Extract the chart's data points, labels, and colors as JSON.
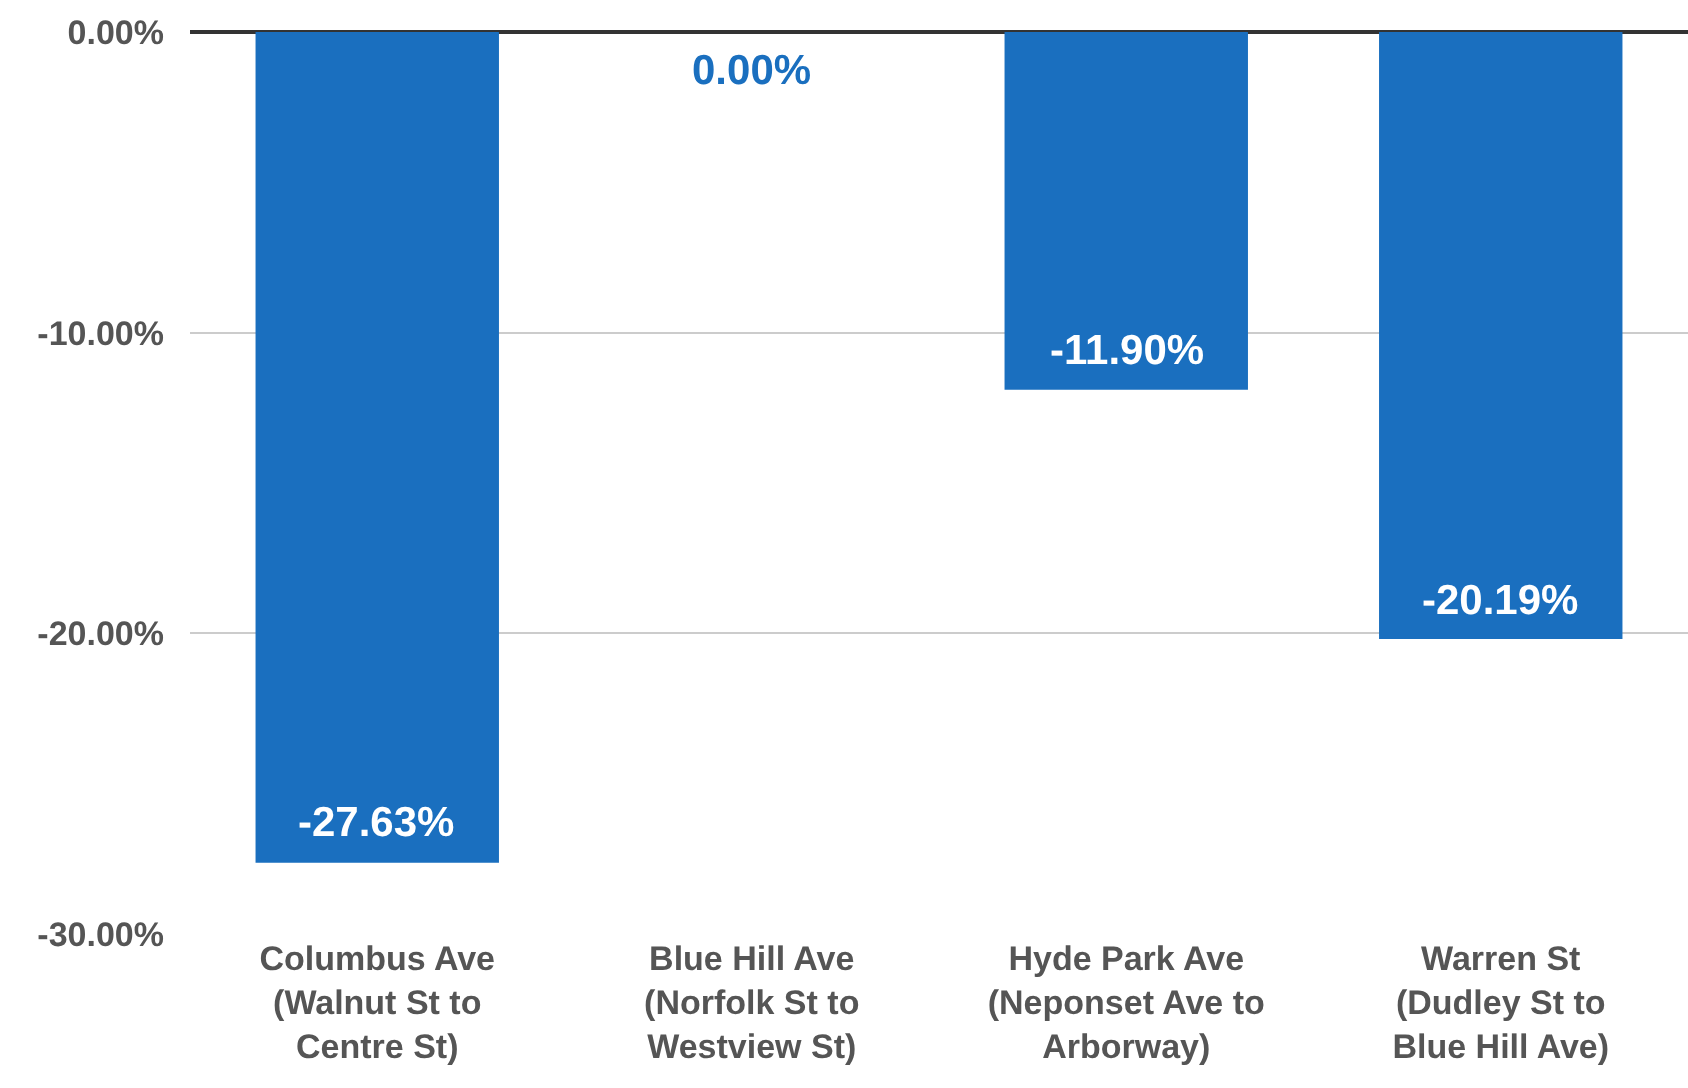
{
  "chart_data": {
    "type": "bar",
    "categories": [
      "Columbus Ave\n(Walnut St to\nCentre St)",
      "Blue Hill Ave\n(Norfolk St to\nWestview St)",
      "Hyde Park Ave\n(Neponset Ave to\nArborway)",
      "Warren St\n(Dudley St to\nBlue Hill Ave)"
    ],
    "values": [
      -27.63,
      0,
      -11.9,
      -20.19
    ],
    "value_labels": [
      "-27.63%",
      "0.00%",
      "-11.90%",
      "-20.19%"
    ],
    "color": "#1a6fbf",
    "ylim": [
      -30,
      0
    ],
    "yticks": [
      {
        "value": 0,
        "label": "0.00%"
      },
      {
        "value": -10,
        "label": "-10.00%"
      },
      {
        "value": -20,
        "label": "-20.00%"
      },
      {
        "value": -30,
        "label": "-30.00%"
      }
    ],
    "grid": "y"
  }
}
